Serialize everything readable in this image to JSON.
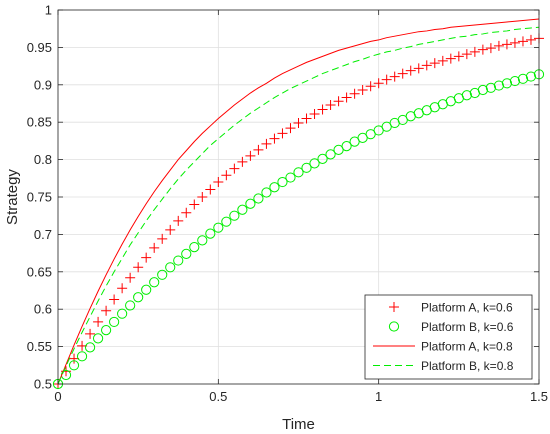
{
  "chart_data": {
    "type": "line",
    "title": "",
    "xlabel": "Time",
    "ylabel": "Strategy",
    "xlim": [
      0,
      1.5
    ],
    "ylim": [
      0.5,
      1
    ],
    "xticks": [
      "0",
      "0.5",
      "1",
      "1.5"
    ],
    "yticks": [
      "0.5",
      "0.55",
      "0.6",
      "0.65",
      "0.7",
      "0.75",
      "0.8",
      "0.85",
      "0.9",
      "0.95",
      "1"
    ],
    "grid": true,
    "legend_position": "bottom-right",
    "x": [
      0,
      0.025,
      0.05,
      0.075,
      0.1,
      0.125,
      0.15,
      0.175,
      0.2,
      0.225,
      0.25,
      0.275,
      0.3,
      0.325,
      0.35,
      0.375,
      0.4,
      0.425,
      0.45,
      0.475,
      0.5,
      0.525,
      0.55,
      0.575,
      0.6,
      0.625,
      0.65,
      0.675,
      0.7,
      0.725,
      0.75,
      0.775,
      0.8,
      0.825,
      0.85,
      0.875,
      0.9,
      0.925,
      0.95,
      0.975,
      1.0,
      1.025,
      1.05,
      1.075,
      1.1,
      1.125,
      1.15,
      1.175,
      1.2,
      1.225,
      1.25,
      1.275,
      1.3,
      1.325,
      1.35,
      1.375,
      1.4,
      1.425,
      1.45,
      1.475,
      1.5
    ],
    "series": [
      {
        "name": "Platform A, k=0.6",
        "style": "plus",
        "color": "#ff0000",
        "values": [
          0.5,
          0.517,
          0.534,
          0.551,
          0.567,
          0.583,
          0.598,
          0.613,
          0.628,
          0.642,
          0.656,
          0.669,
          0.682,
          0.694,
          0.706,
          0.718,
          0.729,
          0.74,
          0.75,
          0.76,
          0.77,
          0.779,
          0.788,
          0.797,
          0.805,
          0.813,
          0.821,
          0.828,
          0.835,
          0.842,
          0.849,
          0.855,
          0.861,
          0.867,
          0.873,
          0.878,
          0.883,
          0.888,
          0.893,
          0.898,
          0.902,
          0.907,
          0.911,
          0.915,
          0.919,
          0.922,
          0.926,
          0.929,
          0.932,
          0.935,
          0.938,
          0.941,
          0.944,
          0.947,
          0.949,
          0.952,
          0.954,
          0.956,
          0.958,
          0.96,
          0.962
        ]
      },
      {
        "name": "Platform B, k=0.6",
        "style": "circle",
        "color": "#00ee00",
        "values": [
          0.5,
          0.512,
          0.525,
          0.537,
          0.549,
          0.561,
          0.572,
          0.583,
          0.594,
          0.605,
          0.616,
          0.626,
          0.636,
          0.646,
          0.656,
          0.665,
          0.674,
          0.683,
          0.692,
          0.701,
          0.709,
          0.717,
          0.725,
          0.733,
          0.741,
          0.748,
          0.756,
          0.763,
          0.77,
          0.776,
          0.783,
          0.789,
          0.795,
          0.801,
          0.807,
          0.813,
          0.818,
          0.824,
          0.829,
          0.834,
          0.839,
          0.844,
          0.849,
          0.853,
          0.858,
          0.862,
          0.866,
          0.87,
          0.874,
          0.878,
          0.882,
          0.886,
          0.889,
          0.893,
          0.896,
          0.899,
          0.902,
          0.905,
          0.908,
          0.911,
          0.914
        ]
      },
      {
        "name": "Platform A, k=0.8",
        "style": "solid",
        "color": "#ff0000",
        "values": [
          0.5,
          0.526,
          0.552,
          0.577,
          0.601,
          0.624,
          0.646,
          0.667,
          0.687,
          0.706,
          0.724,
          0.741,
          0.757,
          0.772,
          0.786,
          0.8,
          0.812,
          0.824,
          0.835,
          0.845,
          0.855,
          0.864,
          0.873,
          0.881,
          0.889,
          0.896,
          0.902,
          0.909,
          0.915,
          0.92,
          0.925,
          0.93,
          0.934,
          0.938,
          0.942,
          0.946,
          0.949,
          0.952,
          0.955,
          0.958,
          0.96,
          0.963,
          0.965,
          0.967,
          0.969,
          0.971,
          0.972,
          0.974,
          0.975,
          0.977,
          0.978,
          0.979,
          0.98,
          0.981,
          0.982,
          0.983,
          0.984,
          0.985,
          0.986,
          0.987,
          0.988
        ]
      },
      {
        "name": "Platform B, k=0.8",
        "style": "dashed",
        "color": "#00ee00",
        "values": [
          0.5,
          0.524,
          0.547,
          0.569,
          0.59,
          0.611,
          0.631,
          0.65,
          0.668,
          0.686,
          0.702,
          0.718,
          0.733,
          0.747,
          0.761,
          0.774,
          0.786,
          0.797,
          0.808,
          0.819,
          0.828,
          0.837,
          0.846,
          0.854,
          0.862,
          0.869,
          0.876,
          0.883,
          0.889,
          0.895,
          0.9,
          0.905,
          0.91,
          0.915,
          0.919,
          0.923,
          0.927,
          0.931,
          0.934,
          0.938,
          0.941,
          0.944,
          0.946,
          0.949,
          0.951,
          0.954,
          0.956,
          0.958,
          0.96,
          0.962,
          0.964,
          0.965,
          0.967,
          0.968,
          0.97,
          0.971,
          0.972,
          0.974,
          0.975,
          0.976,
          0.977
        ]
      }
    ]
  }
}
